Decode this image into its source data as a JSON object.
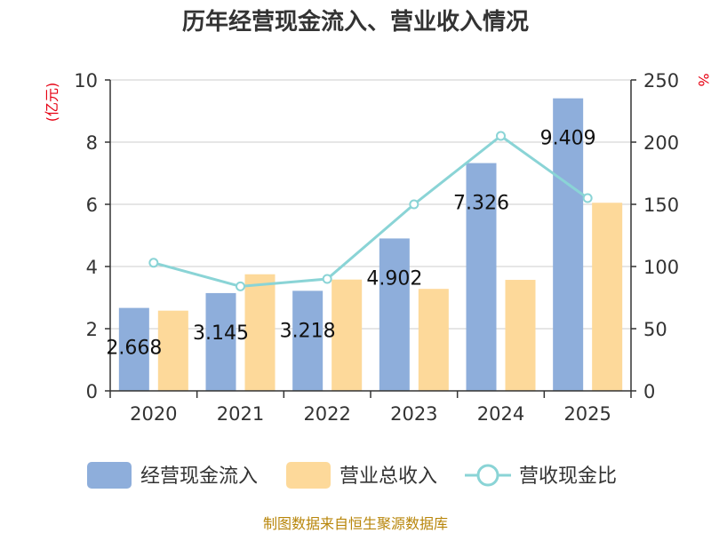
{
  "chart_data": {
    "type": "bar",
    "title": "历年经营现金流入、营业收入情况",
    "categories": [
      "2020",
      "2021",
      "2022",
      "2023",
      "2024",
      "2025"
    ],
    "series": [
      {
        "name": "经营现金流入",
        "kind": "bar",
        "axis": "left",
        "color": "#8eaedb",
        "values": [
          2.668,
          3.145,
          3.218,
          4.902,
          7.326,
          9.409
        ]
      },
      {
        "name": "营业总收入",
        "kind": "bar",
        "axis": "left",
        "color": "#fdd99a",
        "values": [
          2.58,
          3.75,
          3.58,
          3.28,
          3.57,
          6.05
        ]
      },
      {
        "name": "营收现金比",
        "kind": "line",
        "axis": "right",
        "color": "#8ad4d6",
        "values": [
          103,
          84,
          90,
          150,
          205,
          155
        ]
      }
    ],
    "data_labels": [
      "2.668",
      "3.145",
      "3.218",
      "4.902",
      "7.326",
      "9.409"
    ],
    "y_left": {
      "label": "(亿元)",
      "range": [
        0,
        10
      ],
      "ticks": [
        "0",
        "2",
        "4",
        "6",
        "8",
        "10"
      ]
    },
    "y_right": {
      "label": "%",
      "range": [
        0,
        250
      ],
      "ticks": [
        "0",
        "50",
        "100",
        "150",
        "200",
        "250"
      ]
    },
    "legend": [
      "经营现金流入",
      "营业总收入",
      "营收现金比"
    ],
    "legend_position": "bottom",
    "grid": true
  },
  "source": "制图数据来自恒生聚源数据库"
}
